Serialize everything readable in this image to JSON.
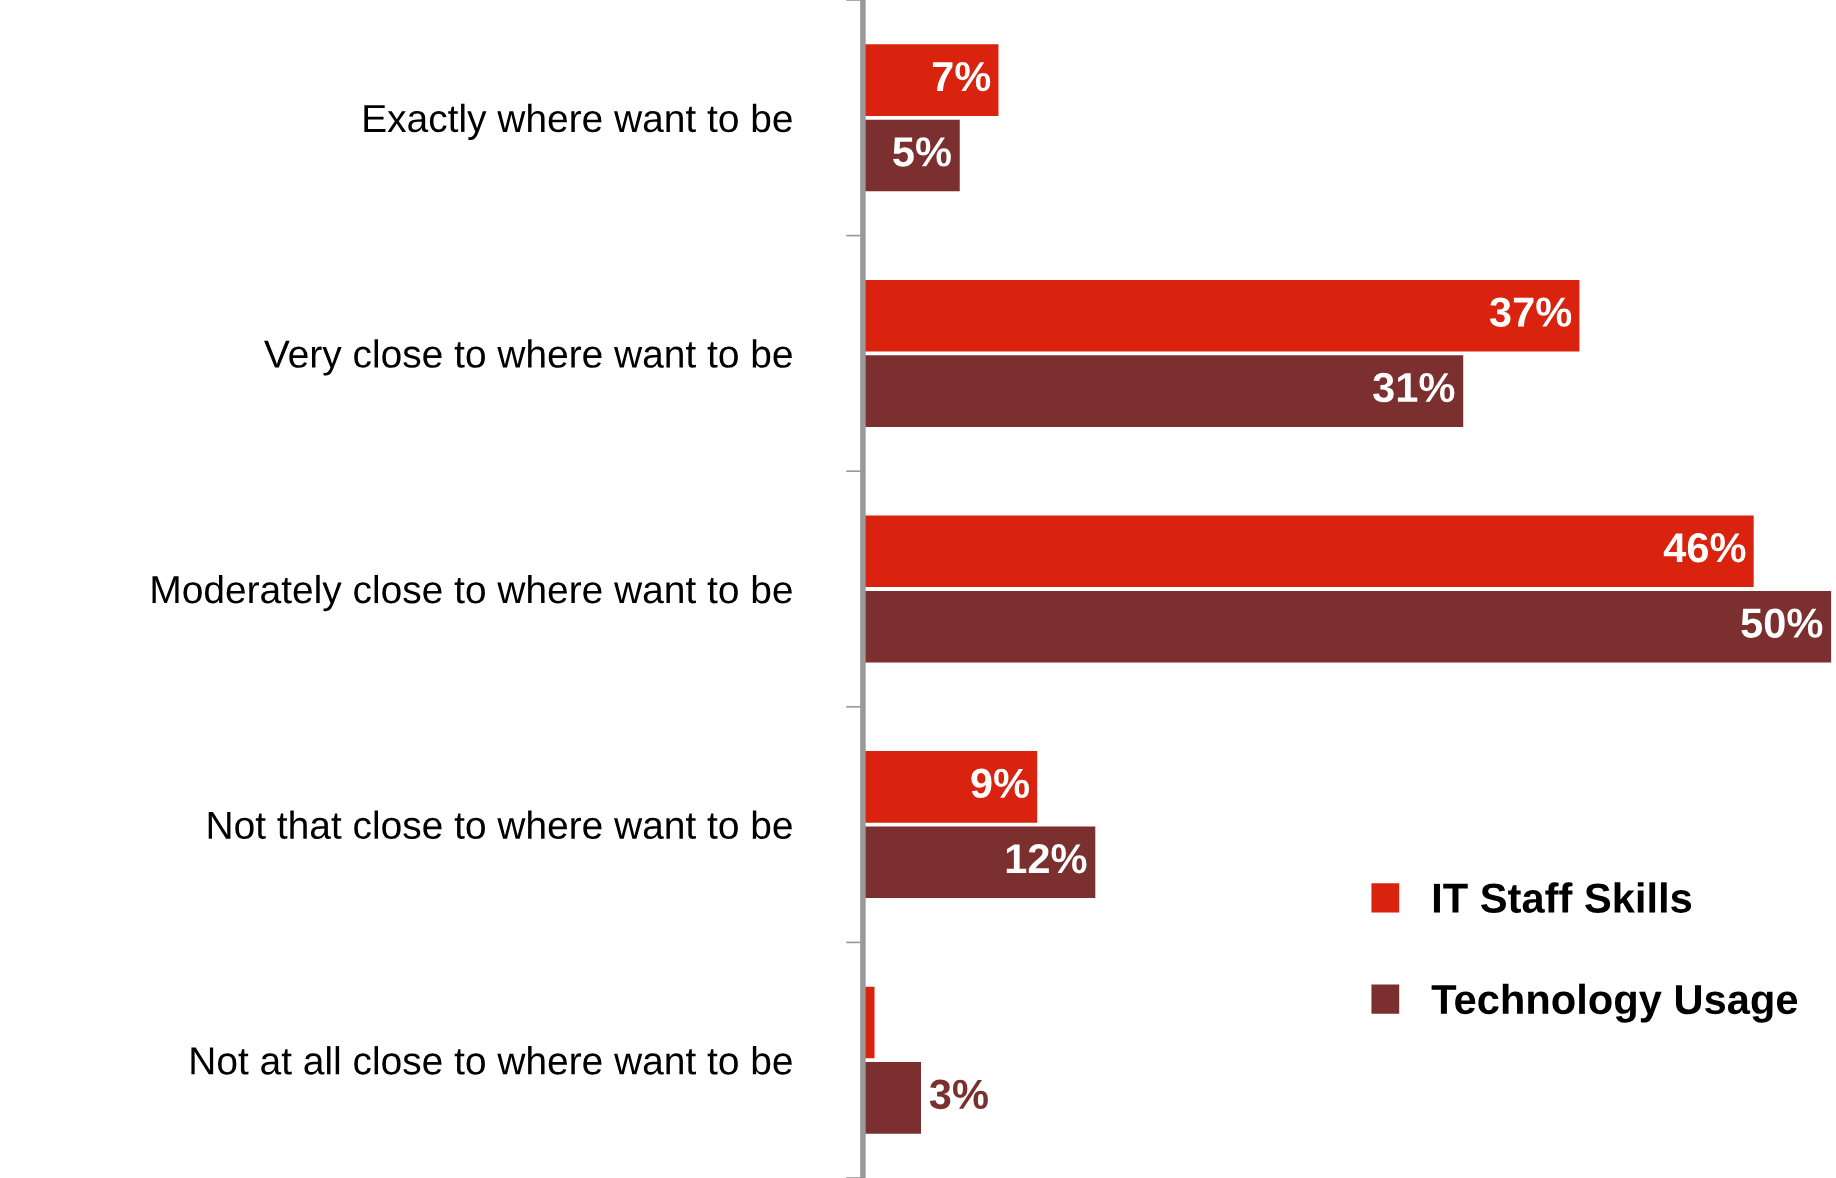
{
  "chart_data": {
    "type": "bar",
    "orientation": "horizontal",
    "legend": "bottom right",
    "categories": [
      "Exactly where want to be",
      "Very close to where want to be",
      "Moderately close to where want to be",
      "Not that close to where want to be",
      "Not at all close to where want to be"
    ],
    "series": [
      {
        "name": "IT Staff Skills",
        "color": "#d9230f",
        "values": [
          7,
          37,
          46,
          9,
          0.6
        ],
        "value_labels": [
          "7%",
          "37%",
          "46%",
          "9%",
          null
        ]
      },
      {
        "name": "Technology Usage",
        "color": "#7b2f2f",
        "values": [
          5,
          31,
          50,
          12,
          3
        ],
        "value_labels": [
          "5%",
          "31%",
          "50%",
          "12%",
          "3%"
        ]
      }
    ]
  }
}
